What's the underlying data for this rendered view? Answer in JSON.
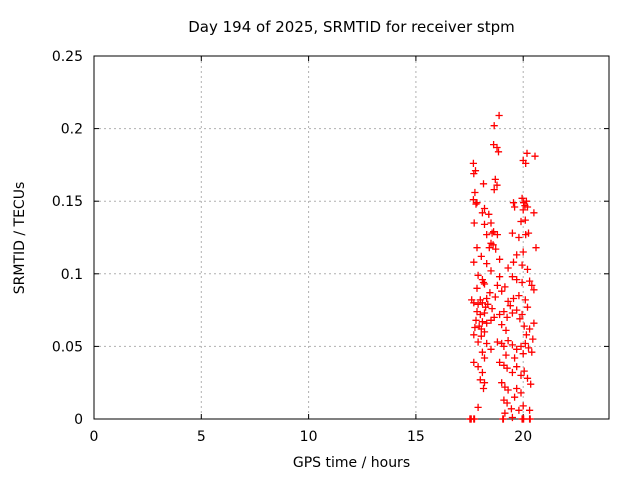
{
  "chart_data": {
    "type": "scatter",
    "title": "Day 194 of 2025, SRMTID for receiver stpm",
    "xlabel": "GPS time / hours",
    "ylabel": "SRMTID / TECUs",
    "xlim": [
      0,
      24
    ],
    "ylim": [
      0,
      0.25
    ],
    "xticks": [
      0,
      5,
      10,
      15,
      20
    ],
    "xtick_labels": [
      "0",
      "5",
      "10",
      "15",
      "20"
    ],
    "yticks": [
      0,
      0.05,
      0.1,
      0.15,
      0.2,
      0.25
    ],
    "ytick_labels": [
      "0",
      "0.05",
      "0.1",
      "0.15",
      "0.2",
      "0.25"
    ],
    "grid": true,
    "grid_style": "dashed",
    "legend": "none",
    "marker": "plus",
    "marker_color": "#ff0000",
    "grid_color": "#b0b0b0",
    "border_color": "#000000",
    "background_color": "#ffffff",
    "series": [
      {
        "name": "SRMTID",
        "points": [
          [
            18.88,
            0.209
          ],
          [
            18.65,
            0.202
          ],
          [
            18.62,
            0.189
          ],
          [
            18.78,
            0.187
          ],
          [
            18.85,
            0.184
          ],
          [
            20.18,
            0.183
          ],
          [
            20.55,
            0.181
          ],
          [
            20.0,
            0.178
          ],
          [
            20.12,
            0.176
          ],
          [
            17.68,
            0.176
          ],
          [
            17.78,
            0.171
          ],
          [
            17.7,
            0.169
          ],
          [
            18.7,
            0.165
          ],
          [
            18.15,
            0.162
          ],
          [
            18.78,
            0.161
          ],
          [
            18.65,
            0.158
          ],
          [
            17.75,
            0.156
          ],
          [
            17.68,
            0.151
          ],
          [
            17.85,
            0.149
          ],
          [
            19.55,
            0.149
          ],
          [
            19.95,
            0.152
          ],
          [
            20.02,
            0.149
          ],
          [
            20.08,
            0.147
          ],
          [
            20.15,
            0.15
          ],
          [
            20.2,
            0.146
          ],
          [
            18.2,
            0.145
          ],
          [
            19.6,
            0.146
          ],
          [
            17.8,
            0.148
          ],
          [
            18.1,
            0.142
          ],
          [
            18.4,
            0.141
          ],
          [
            20.5,
            0.142
          ],
          [
            20.0,
            0.144
          ],
          [
            17.72,
            0.135
          ],
          [
            18.2,
            0.134
          ],
          [
            18.5,
            0.135
          ],
          [
            19.9,
            0.136
          ],
          [
            20.1,
            0.137
          ],
          [
            18.62,
            0.129
          ],
          [
            18.55,
            0.128
          ],
          [
            18.3,
            0.127
          ],
          [
            18.8,
            0.127
          ],
          [
            19.5,
            0.128
          ],
          [
            19.8,
            0.125
          ],
          [
            20.12,
            0.127
          ],
          [
            20.25,
            0.128
          ],
          [
            18.5,
            0.121
          ],
          [
            18.6,
            0.12
          ],
          [
            18.42,
            0.118
          ],
          [
            18.72,
            0.117
          ],
          [
            17.85,
            0.118
          ],
          [
            20.6,
            0.118
          ],
          [
            20.0,
            0.115
          ],
          [
            19.7,
            0.113
          ],
          [
            18.9,
            0.11
          ],
          [
            17.7,
            0.108
          ],
          [
            18.3,
            0.107
          ],
          [
            19.55,
            0.108
          ],
          [
            19.95,
            0.106
          ],
          [
            20.2,
            0.103
          ],
          [
            18.5,
            0.102
          ],
          [
            19.3,
            0.104
          ],
          [
            18.05,
            0.112
          ],
          [
            17.9,
            0.099
          ],
          [
            18.1,
            0.096
          ],
          [
            18.15,
            0.094
          ],
          [
            17.85,
            0.09
          ],
          [
            18.2,
            0.093
          ],
          [
            18.8,
            0.092
          ],
          [
            18.9,
            0.098
          ],
          [
            19.5,
            0.098
          ],
          [
            19.7,
            0.096
          ],
          [
            19.95,
            0.094
          ],
          [
            20.4,
            0.092
          ],
          [
            20.5,
            0.089
          ],
          [
            18.45,
            0.087
          ],
          [
            19.0,
            0.088
          ],
          [
            19.8,
            0.085
          ],
          [
            19.55,
            0.083
          ],
          [
            20.1,
            0.082
          ],
          [
            19.3,
            0.081
          ],
          [
            18.7,
            0.084
          ],
          [
            18.3,
            0.083
          ],
          [
            18.0,
            0.082
          ],
          [
            17.6,
            0.082
          ],
          [
            20.3,
            0.095
          ],
          [
            19.15,
            0.091
          ],
          [
            17.7,
            0.08
          ],
          [
            17.9,
            0.079
          ],
          [
            18.1,
            0.08
          ],
          [
            18.35,
            0.079
          ],
          [
            17.85,
            0.074
          ],
          [
            18.0,
            0.072
          ],
          [
            18.2,
            0.073
          ],
          [
            17.8,
            0.068
          ],
          [
            18.1,
            0.067
          ],
          [
            18.3,
            0.066
          ],
          [
            18.5,
            0.068
          ],
          [
            17.95,
            0.064
          ],
          [
            18.2,
            0.06
          ],
          [
            18.05,
            0.062
          ],
          [
            18.9,
            0.072
          ],
          [
            19.1,
            0.074
          ],
          [
            19.25,
            0.07
          ],
          [
            19.5,
            0.073
          ],
          [
            19.7,
            0.075
          ],
          [
            19.95,
            0.072
          ],
          [
            20.2,
            0.077
          ],
          [
            20.5,
            0.066
          ],
          [
            18.55,
            0.076
          ],
          [
            18.65,
            0.07
          ],
          [
            19.4,
            0.078
          ],
          [
            19.85,
            0.069
          ],
          [
            20.05,
            0.064
          ],
          [
            20.3,
            0.062
          ],
          [
            18.25,
            0.077
          ],
          [
            17.75,
            0.063
          ],
          [
            19.0,
            0.065
          ],
          [
            19.2,
            0.061
          ],
          [
            18.05,
            0.057
          ],
          [
            17.9,
            0.053
          ],
          [
            18.3,
            0.052
          ],
          [
            18.1,
            0.046
          ],
          [
            18.2,
            0.042
          ],
          [
            18.8,
            0.053
          ],
          [
            19.0,
            0.052
          ],
          [
            19.1,
            0.05
          ],
          [
            19.3,
            0.054
          ],
          [
            19.5,
            0.051
          ],
          [
            19.7,
            0.048
          ],
          [
            19.9,
            0.05
          ],
          [
            20.1,
            0.052
          ],
          [
            20.25,
            0.049
          ],
          [
            20.4,
            0.046
          ],
          [
            18.5,
            0.048
          ],
          [
            19.2,
            0.044
          ],
          [
            19.6,
            0.042
          ],
          [
            20.0,
            0.045
          ],
          [
            20.45,
            0.055
          ],
          [
            17.7,
            0.058
          ],
          [
            20.15,
            0.058
          ],
          [
            17.7,
            0.039
          ],
          [
            17.9,
            0.036
          ],
          [
            18.1,
            0.032
          ],
          [
            18.0,
            0.027
          ],
          [
            18.2,
            0.025
          ],
          [
            18.9,
            0.039
          ],
          [
            19.1,
            0.037
          ],
          [
            19.25,
            0.035
          ],
          [
            19.5,
            0.032
          ],
          [
            19.7,
            0.036
          ],
          [
            19.9,
            0.03
          ],
          [
            19.0,
            0.025
          ],
          [
            19.15,
            0.022
          ],
          [
            19.3,
            0.02
          ],
          [
            19.7,
            0.021
          ],
          [
            19.9,
            0.018
          ],
          [
            20.2,
            0.028
          ],
          [
            20.35,
            0.024
          ],
          [
            18.15,
            0.021
          ],
          [
            20.05,
            0.033
          ],
          [
            19.1,
            0.013
          ],
          [
            19.25,
            0.011
          ],
          [
            19.8,
            0.006
          ],
          [
            20.3,
            0.006
          ],
          [
            17.9,
            0.008
          ],
          [
            19.15,
            0.004
          ],
          [
            20.0,
            0.009
          ],
          [
            19.6,
            0.015
          ],
          [
            19.45,
            0.007
          ],
          [
            17.52,
            0
          ],
          [
            17.55,
            0
          ],
          [
            17.58,
            0
          ],
          [
            17.7,
            0
          ],
          [
            17.73,
            0
          ],
          [
            19.05,
            0
          ],
          [
            19.08,
            0
          ],
          [
            19.5,
            0.001
          ],
          [
            19.95,
            0
          ],
          [
            19.98,
            0
          ],
          [
            20.02,
            0
          ],
          [
            20.3,
            0
          ],
          [
            20.33,
            0
          ]
        ]
      }
    ]
  }
}
